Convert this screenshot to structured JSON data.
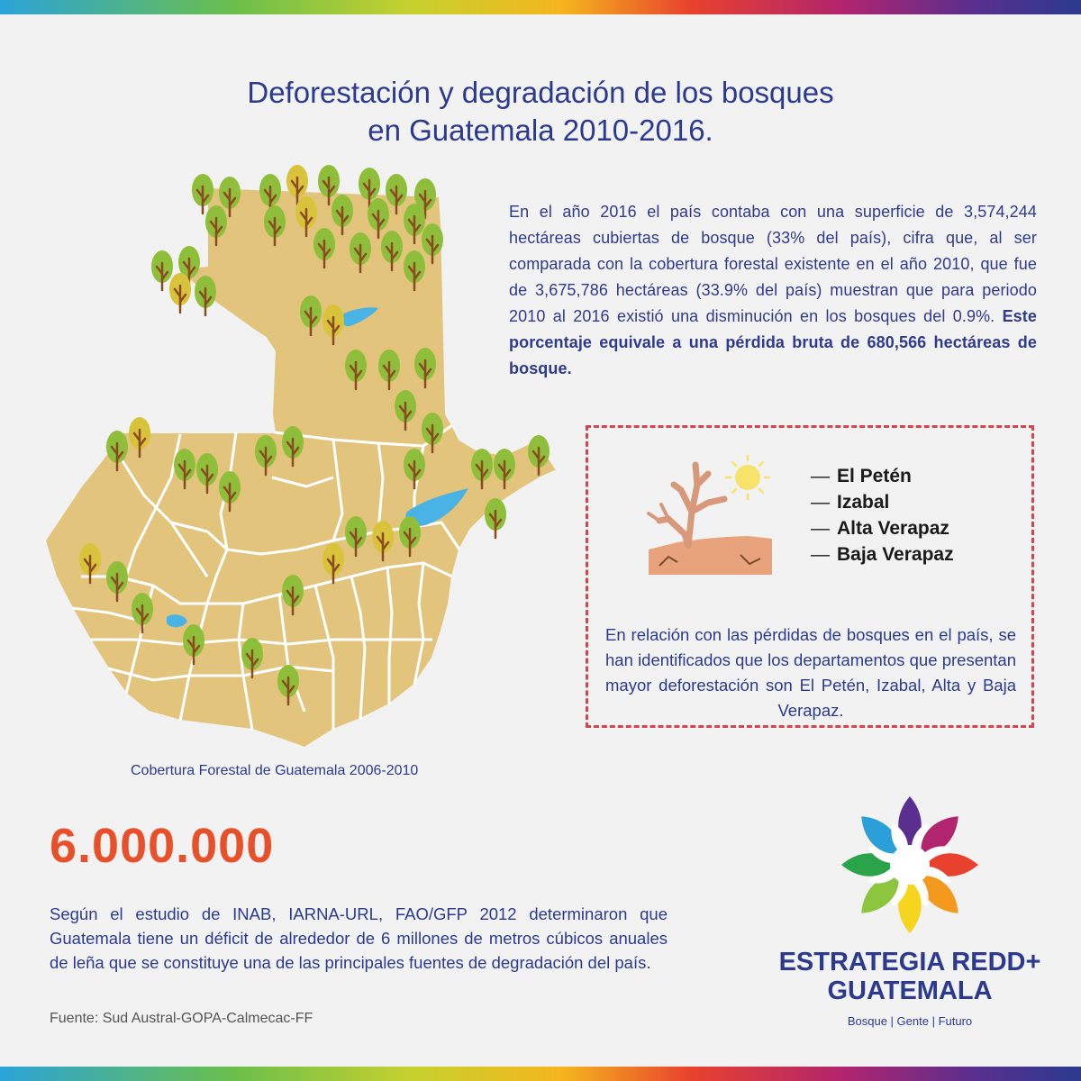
{
  "title": {
    "line1": "Deforestación y degradación de los bosques",
    "line2": "en Guatemala 2010-2016."
  },
  "intro": {
    "text": "En el año 2016 el país contaba con una superficie de 3,574,244 hectáreas cubiertas de bosque (33% del país), cifra que, al ser comparada con la cobertura forestal existente en el año 2010, que fue de 3,675,786 hectáreas (33.9% del país) muestran que para periodo 2010 al 2016 existió una disminución en los bosques del 0.9%. ",
    "highlight": "Este porcentaje equivale a una pérdida bruta de 680,566 hectáreas de bosque."
  },
  "map": {
    "caption": "Cobertura Forestal de Guatemala 2006-2010",
    "land_color": "#e2c47c",
    "water_color": "#4ab3e6",
    "tree_color": "#8fbf3a",
    "trunk_color": "#8a4b22",
    "icon": "tree-icon"
  },
  "departments_box": {
    "dash": "—",
    "items": [
      "El Petén",
      "Izabal",
      "Alta Verapaz",
      "Baja Verapaz"
    ],
    "text": "En relación con las pérdidas de bosques en el país, se han identificados que los departamentos que presentan mayor deforestación son El Petén, Izabal,  Alta y Baja Verapaz.",
    "border_color": "#d0464f",
    "icon": "dry-tree-sun-icon"
  },
  "deficit": {
    "number": "6.000.000",
    "number_color": "#e8502a",
    "text": "Según el estudio de INAB, IARNA-URL, FAO/GFP 2012 determinaron que Guatemala tiene un déficit de alrededor de 6 millones de metros cúbicos anuales de leña que se constituye una de las principales fuentes de degradación del país."
  },
  "source": "Fuente: Sud Austral-GOPA-Calmecac-FF",
  "logo": {
    "line1": "ESTRATEGIA REDD+",
    "line2": "GUATEMALA",
    "tagline": "Bosque | Gente | Futuro",
    "icon": "redd-flower-logo",
    "color": "#2b3a8f"
  }
}
